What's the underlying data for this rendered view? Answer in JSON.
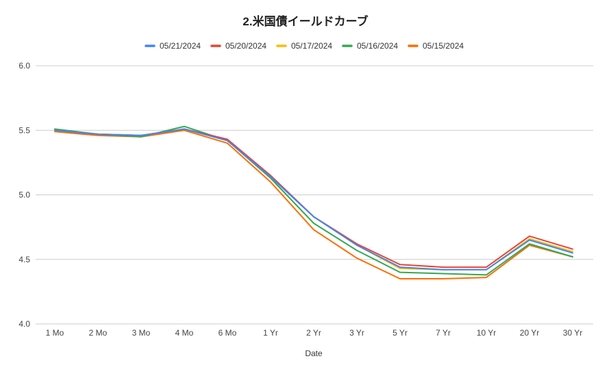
{
  "chart_data": {
    "type": "line",
    "title": "2.米国債イールドカーブ",
    "xlabel": "Date",
    "ylabel": "",
    "ylim": [
      4.0,
      6.0
    ],
    "yticks": [
      "4.0",
      "4.5",
      "5.0",
      "5.5",
      "6.0"
    ],
    "grid": true,
    "legend": "top",
    "categories": [
      "1 Mo",
      "2 Mo",
      "3 Mo",
      "4 Mo",
      "6 Mo",
      "1 Yr",
      "2 Yr",
      "3 Yr",
      "5 Yr",
      "7 Yr",
      "10 Yr",
      "20 Yr",
      "30 Yr"
    ],
    "series": [
      {
        "name": "05/21/2024",
        "color": "#4285f4",
        "values": [
          5.5,
          5.47,
          5.46,
          5.51,
          5.42,
          5.14,
          4.83,
          4.61,
          4.44,
          4.42,
          4.42,
          4.65,
          4.55
        ]
      },
      {
        "name": "05/20/2024",
        "color": "#ea4335",
        "values": [
          5.5,
          5.47,
          5.46,
          5.51,
          5.43,
          5.15,
          4.83,
          4.62,
          4.46,
          4.44,
          4.44,
          4.68,
          4.58
        ]
      },
      {
        "name": "05/17/2024",
        "color": "#fbbc04",
        "values": [
          5.5,
          5.47,
          5.46,
          5.51,
          5.42,
          5.14,
          4.83,
          4.61,
          4.43,
          4.42,
          4.42,
          4.66,
          4.56
        ]
      },
      {
        "name": "05/16/2024",
        "color": "#34a853",
        "values": [
          5.51,
          5.47,
          5.45,
          5.53,
          5.42,
          5.13,
          4.78,
          4.57,
          4.4,
          4.39,
          4.38,
          4.62,
          4.52
        ]
      },
      {
        "name": "05/15/2024",
        "color": "#ff6d01",
        "values": [
          5.49,
          5.46,
          5.45,
          5.5,
          5.4,
          5.1,
          4.73,
          4.51,
          4.35,
          4.35,
          4.36,
          4.61,
          4.52
        ]
      }
    ]
  }
}
